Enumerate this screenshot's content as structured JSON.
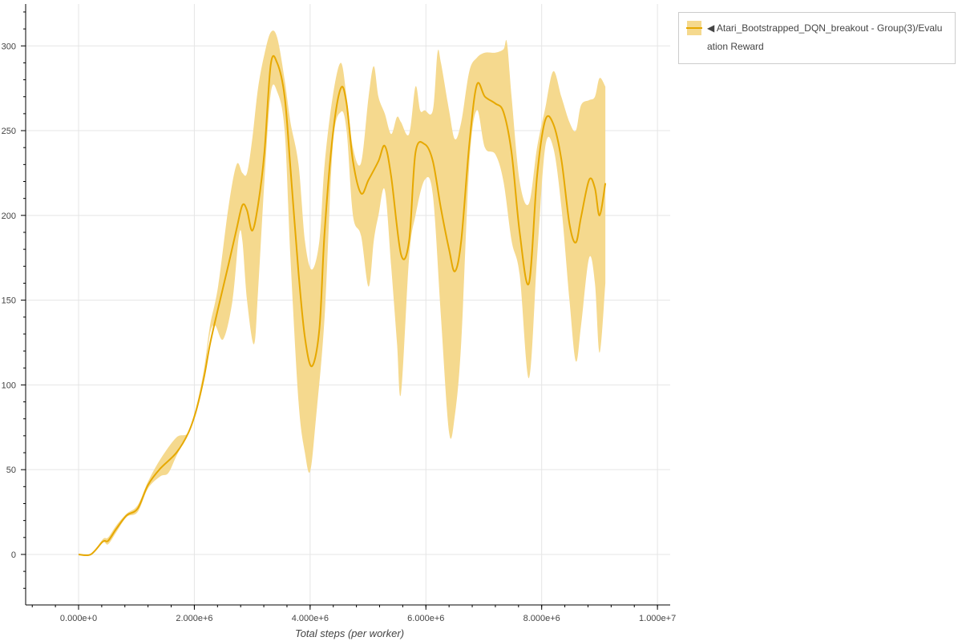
{
  "chart_data": {
    "type": "line",
    "title": "",
    "xlabel": "Total steps (per worker)",
    "ylabel": "",
    "xlim": [
      -914000.0,
      10220000.0
    ],
    "ylim": [
      -29.8,
      324.7
    ],
    "grid": true,
    "legend_placement": "outside-top-right",
    "x_ticks": [
      0,
      2000000.0,
      4000000.0,
      6000000.0,
      8000000.0,
      10000000.0
    ],
    "x_tick_labels": [
      "0.000e+0",
      "2.000e+6",
      "4.000e+6",
      "6.000e+6",
      "8.000e+6",
      "1.000e+7"
    ],
    "y_ticks": [
      0,
      50,
      100,
      150,
      200,
      250,
      300
    ],
    "y_tick_labels": [
      "0",
      "50",
      "100",
      "150",
      "200",
      "250",
      "300"
    ],
    "colors": {
      "line": "#e6a800",
      "band": "#f5d98e"
    },
    "legend": {
      "line1": "◀ Atari_Bootstrapped_DQN_breakout - Group(3)/Evalu",
      "line2": "ation Reward"
    },
    "series": [
      {
        "name": "Atari_Bootstrapped_DQN_breakout - Group(3)/Evaluation Reward",
        "mean": {
          "x": [
            0,
            210000.0,
            420000.0,
            510000.0,
            650000.0,
            830000.0,
            1020000.0,
            1200000.0,
            1410000.0,
            1690000.0,
            1900000.0,
            2040000.0,
            2170000.0,
            2270000.0,
            2410000.0,
            2590000.0,
            2730000.0,
            2830000.0,
            2910000.0,
            3000000.0,
            3100000.0,
            3210000.0,
            3320000.0,
            3430000.0,
            3560000.0,
            3660000.0,
            3800000.0,
            3910000.0,
            4030000.0,
            4160000.0,
            4250000.0,
            4390000.0,
            4530000.0,
            4630000.0,
            4740000.0,
            4880000.0,
            5010000.0,
            5180000.0,
            5290000.0,
            5400000.0,
            5570000.0,
            5710000.0,
            5820000.0,
            5980000.0,
            6120000.0,
            6260000.0,
            6400000.0,
            6500000.0,
            6610000.0,
            6750000.0,
            6880000.0,
            7020000.0,
            7200000.0,
            7340000.0,
            7480000.0,
            7620000.0,
            7780000.0,
            7920000.0,
            8060000.0,
            8200000.0,
            8340000.0,
            8480000.0,
            8590000.0,
            8680000.0,
            8820000.0,
            8920000.0,
            9000000.0,
            9100000.0
          ],
          "y": [
            0,
            0,
            7.6,
            8,
            15,
            23,
            27,
            41,
            50.6,
            60,
            72,
            86,
            105,
            124,
            145,
            171,
            192,
            206,
            203,
            191,
            206,
            237,
            289,
            290,
            270,
            228,
            166,
            128,
            111,
            133,
            190,
            247,
            275,
            266,
            232,
            213,
            221,
            232,
            241,
            223,
            177,
            185,
            237,
            242,
            232,
            204,
            180,
            167,
            185,
            242,
            277,
            270,
            266,
            261,
            237,
            190,
            160,
            223,
            256,
            254,
            233,
            195,
            184,
            199,
            221,
            216,
            200,
            219
          ]
        },
        "upper": {
          "x": [
            0,
            210000.0,
            420000.0,
            510000.0,
            650000.0,
            830000.0,
            1020000.0,
            1200000.0,
            1410000.0,
            1690000.0,
            1900000.0,
            2040000.0,
            2170000.0,
            2270000.0,
            2410000.0,
            2590000.0,
            2730000.0,
            2830000.0,
            2910000.0,
            3000000.0,
            3100000.0,
            3210000.0,
            3320000.0,
            3430000.0,
            3560000.0,
            3660000.0,
            3800000.0,
            3910000.0,
            4030000.0,
            4160000.0,
            4250000.0,
            4390000.0,
            4530000.0,
            4630000.0,
            4740000.0,
            4880000.0,
            5010000.0,
            5100000.0,
            5180000.0,
            5290000.0,
            5400000.0,
            5500000.0,
            5570000.0,
            5710000.0,
            5820000.0,
            5900000.0,
            5980000.0,
            6120000.0,
            6200000.0,
            6260000.0,
            6400000.0,
            6500000.0,
            6610000.0,
            6750000.0,
            6880000.0,
            7020000.0,
            7200000.0,
            7340000.0,
            7400000.0,
            7480000.0,
            7620000.0,
            7780000.0,
            7920000.0,
            8060000.0,
            8200000.0,
            8340000.0,
            8480000.0,
            8590000.0,
            8680000.0,
            8820000.0,
            8920000.0,
            9000000.0,
            9100000.0
          ],
          "y": [
            0,
            0,
            9,
            10,
            17,
            24,
            29,
            43,
            56,
            69,
            72,
            88,
            110,
            135,
            158,
            205,
            230,
            225,
            225,
            245,
            275,
            295,
            308,
            305,
            280,
            255,
            230,
            185,
            168,
            185,
            230,
            270,
            290,
            270,
            240,
            231,
            270,
            288,
            270,
            260,
            248,
            258,
            255,
            248,
            276,
            262,
            262,
            262,
            296,
            290,
            262,
            245,
            255,
            285,
            293,
            296,
            296,
            298,
            302,
            270,
            220,
            207,
            240,
            263,
            285,
            270,
            255,
            250,
            265,
            268,
            270,
            281,
            276
          ]
        },
        "lower": {
          "x": [
            0,
            210000.0,
            420000.0,
            510000.0,
            650000.0,
            830000.0,
            1020000.0,
            1200000.0,
            1410000.0,
            1550000.0,
            1690000.0,
            1900000.0,
            2040000.0,
            2170000.0,
            2270000.0,
            2360000.0,
            2500000.0,
            2660000.0,
            2770000.0,
            2830000.0,
            2910000.0,
            3030000.0,
            3100000.0,
            3210000.0,
            3320000.0,
            3430000.0,
            3560000.0,
            3660000.0,
            3800000.0,
            3910000.0,
            4000000.0,
            4100000.0,
            4250000.0,
            4390000.0,
            4530000.0,
            4630000.0,
            4740000.0,
            4880000.0,
            5010000.0,
            5100000.0,
            5180000.0,
            5290000.0,
            5400000.0,
            5500000.0,
            5570000.0,
            5710000.0,
            5820000.0,
            5980000.0,
            6120000.0,
            6260000.0,
            6400000.0,
            6500000.0,
            6610000.0,
            6750000.0,
            6880000.0,
            7020000.0,
            7200000.0,
            7340000.0,
            7480000.0,
            7620000.0,
            7780000.0,
            7920000.0,
            8060000.0,
            8200000.0,
            8340000.0,
            8480000.0,
            8590000.0,
            8680000.0,
            8820000.0,
            8920000.0,
            9000000.0,
            9100000.0
          ],
          "y": [
            0,
            0,
            7,
            6,
            13,
            22,
            25,
            39,
            46,
            48,
            58,
            72,
            84,
            105,
            130,
            135,
            127,
            150,
            188,
            185,
            150,
            124,
            155,
            220,
            272,
            273,
            250,
            175,
            90,
            60,
            49,
            80,
            140,
            240,
            261,
            250,
            200,
            188,
            158,
            185,
            200,
            215,
            170,
            125,
            95,
            175,
            200,
            221,
            212,
            140,
            72,
            82,
            125,
            230,
            262,
            240,
            236,
            220,
            185,
            165,
            104,
            175,
            240,
            240,
            205,
            150,
            114,
            135,
            175,
            160,
            119,
            160
          ]
        }
      }
    ]
  }
}
